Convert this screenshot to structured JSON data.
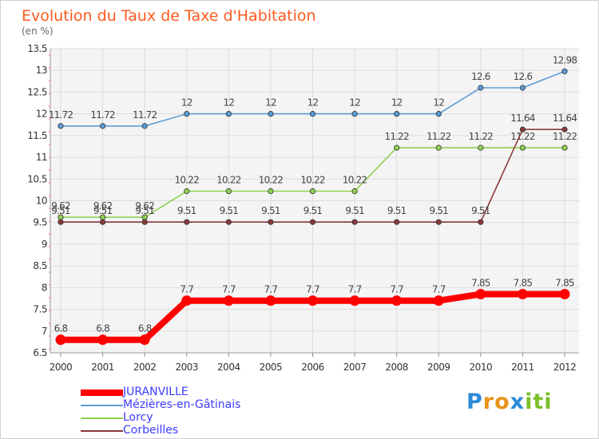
{
  "chart_data": {
    "type": "line",
    "title": "Evolution du Taux de Taxe d'Habitation",
    "subtitle": "(en %)",
    "xlabel": "",
    "ylabel": "(en %)",
    "x": [
      "2000",
      "2001",
      "2002",
      "2003",
      "2004",
      "2005",
      "2006",
      "2007",
      "2008",
      "2009",
      "2010",
      "2011",
      "2012"
    ],
    "ylim": [
      6.5,
      13.5
    ],
    "yticks": [
      "6.5",
      "7",
      "7.5",
      "8",
      "8.5",
      "9",
      "9.5",
      "10",
      "10.5",
      "11",
      "11.5",
      "12",
      "12.5",
      "13",
      "13.5"
    ],
    "grid": true,
    "series": [
      {
        "name": "Mézières-en-Gâtinais",
        "color": "#5b9bd5",
        "values": [
          11.72,
          11.72,
          11.72,
          12,
          12,
          12,
          12,
          12,
          12,
          12,
          12.6,
          12.6,
          12.98
        ],
        "labels": [
          "11.72",
          "11.72",
          "11.72",
          "12",
          "12",
          "12",
          "12",
          "12",
          "12",
          "12",
          "12.6",
          "12.6",
          "12.98"
        ]
      },
      {
        "name": "Lorcy",
        "color": "#8fd14f",
        "values": [
          9.62,
          9.62,
          9.62,
          10.22,
          10.22,
          10.22,
          10.22,
          10.22,
          11.22,
          11.22,
          11.22,
          11.22,
          11.22
        ],
        "labels": [
          "9.62",
          "9.62",
          "9.62",
          "10.22",
          "10.22",
          "10.22",
          "10.22",
          "10.22",
          "11.22",
          "11.22",
          "11.22",
          "11.22",
          "11.22"
        ]
      },
      {
        "name": "Corbeilles",
        "color": "#8b3a3a",
        "values": [
          9.51,
          9.51,
          9.51,
          9.51,
          9.51,
          9.51,
          9.51,
          9.51,
          9.51,
          9.51,
          9.51,
          11.64,
          11.64
        ],
        "labels": [
          "9.51",
          "9.51",
          "9.51",
          "9.51",
          "9.51",
          "9.51",
          "9.51",
          "9.51",
          "9.51",
          "9.51",
          "9.51",
          "11.64",
          "11.64"
        ]
      },
      {
        "name": "JURANVILLE",
        "color": "#ff0000",
        "values": [
          6.8,
          6.8,
          6.8,
          7.7,
          7.7,
          7.7,
          7.7,
          7.7,
          7.7,
          7.7,
          7.85,
          7.85,
          7.85
        ],
        "labels": [
          "6.8",
          "6.8",
          "6.8",
          "7.7",
          "7.7",
          "7.7",
          "7.7",
          "7.7",
          "7.7",
          "7.7",
          "7.85",
          "7.85",
          "7.85"
        ]
      }
    ],
    "legend": [
      "JURANVILLE",
      "Mézières-en-Gâtinais",
      "Lorcy",
      "Corbeilles"
    ]
  },
  "logo": {
    "letters": [
      "P",
      "r",
      "o",
      "x",
      "i",
      "t",
      "i"
    ],
    "colors": [
      "#2e8bd6",
      "#e8931a",
      "#e8931a",
      "#2e8bd6",
      "#7bbf2a",
      "#7bbf2a",
      "#7bbf2a"
    ]
  }
}
